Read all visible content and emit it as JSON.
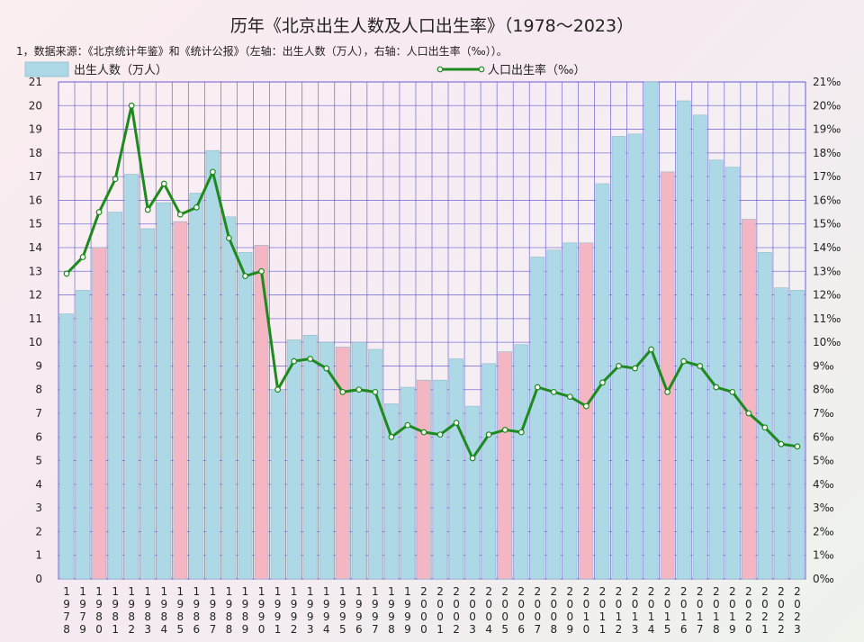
{
  "title": "历年《北京出生人数及人口出生率》（1978～2023）",
  "note": "1，数据来源：《北京统计年鉴》和《统计公报》（左轴：出生人数（万人），右轴：人口出生率（‰））。",
  "chart_data": {
    "type": "bar",
    "categories": [
      "1978",
      "1979",
      "1980",
      "1981",
      "1982",
      "1983",
      "1984",
      "1985",
      "1986",
      "1987",
      "1988",
      "1989",
      "1990",
      "1991",
      "1992",
      "1993",
      "1994",
      "1995",
      "1996",
      "1997",
      "1998",
      "1999",
      "2000",
      "2001",
      "2002",
      "2003",
      "2004",
      "2005",
      "2006",
      "2007",
      "2008",
      "2009",
      "2010",
      "2011",
      "2012",
      "2013",
      "2014",
      "2015",
      "2016",
      "2017",
      "2018",
      "2019",
      "2020",
      "2021",
      "2022",
      "2023"
    ],
    "series": [
      {
        "name": "出生人数（万人）",
        "type": "bar",
        "axis": "left",
        "color": "#add8e6",
        "highlight_color": "#f4b6c2",
        "highlight_categories": [
          "1980",
          "1985",
          "1990",
          "1995",
          "2000",
          "2005",
          "2010",
          "2015",
          "2020"
        ],
        "values": [
          11.2,
          12.2,
          14.0,
          15.5,
          17.1,
          14.8,
          15.9,
          15.1,
          16.3,
          18.1,
          15.3,
          13.8,
          14.1,
          8.0,
          10.1,
          10.3,
          10.0,
          9.8,
          10.0,
          9.7,
          7.4,
          8.1,
          8.4,
          8.4,
          9.3,
          7.3,
          9.1,
          9.6,
          9.9,
          13.6,
          13.9,
          14.2,
          14.2,
          16.7,
          18.7,
          18.8,
          21.0,
          17.2,
          20.2,
          19.6,
          17.7,
          17.4,
          15.2,
          13.8,
          12.3,
          12.2
        ]
      },
      {
        "name": "人口出生率（‰）",
        "type": "line",
        "axis": "right",
        "color": "#1e8a1e",
        "values": [
          12.9,
          13.6,
          15.5,
          16.9,
          20.0,
          15.6,
          16.7,
          15.4,
          15.7,
          17.2,
          14.4,
          12.8,
          13.0,
          8.0,
          9.2,
          9.3,
          8.9,
          7.9,
          8.0,
          7.9,
          6.0,
          6.5,
          6.2,
          6.1,
          6.6,
          5.1,
          6.1,
          6.3,
          6.2,
          8.1,
          7.9,
          7.7,
          7.3,
          8.3,
          9.0,
          8.9,
          9.7,
          7.9,
          9.2,
          9.0,
          8.1,
          7.9,
          7.0,
          6.4,
          5.7,
          5.6
        ]
      }
    ],
    "left_ticks": [
      "0",
      "1",
      "2",
      "3",
      "4",
      "5",
      "6",
      "7",
      "8",
      "9",
      "10",
      "11",
      "12",
      "13",
      "14",
      "15",
      "16",
      "17",
      "18",
      "19",
      "20",
      "21"
    ],
    "right_ticks": [
      "0%o",
      "1%o",
      "2%o",
      "3%o",
      "4%o",
      "5%o",
      "6%o",
      "7%o",
      "8%o",
      "9%o",
      "10%o",
      "11%o",
      "12%o",
      "13%o",
      "14%o",
      "15%o",
      "16%o",
      "17%o",
      "18%o",
      "19%o",
      "20%o",
      "21%o"
    ],
    "ylim": [
      0,
      21
    ],
    "grid": true,
    "gridline_color": "#5a4fcf",
    "legend": "top"
  }
}
